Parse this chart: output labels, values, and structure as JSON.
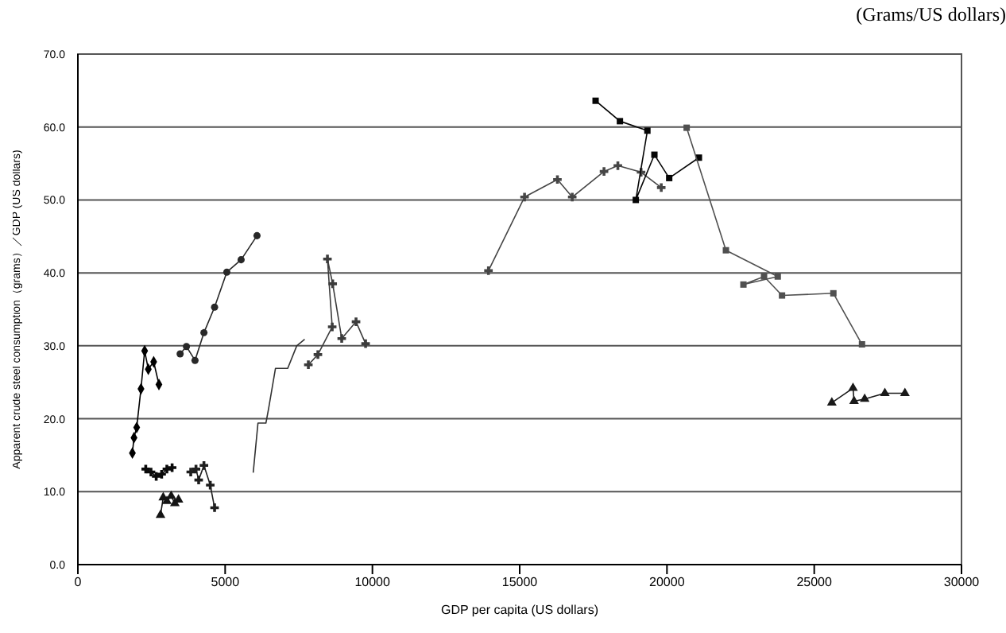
{
  "chart_data": {
    "type": "line",
    "xlabel": "GDP per capita (US dollars)",
    "ylabel": "Apparent crude steel consumption（grams）／GDP (US dollars)",
    "annotations": [
      "(Grams/US dollars)"
    ],
    "xlim": [
      0,
      30000
    ],
    "xticks": [
      0,
      5000,
      10000,
      15000,
      20000,
      25000,
      30000
    ],
    "ylim": [
      0,
      70
    ],
    "yticks": [
      {
        "value": 0,
        "label": "0.0"
      },
      {
        "value": 10,
        "label": "10.0"
      },
      {
        "value": 20,
        "label": "20.0"
      },
      {
        "value": 30,
        "label": "30.0"
      },
      {
        "value": 40,
        "label": "40.0"
      },
      {
        "value": 50,
        "label": "50.0"
      },
      {
        "value": 60,
        "label": "60.0"
      },
      {
        "value": 70,
        "label": "70.0"
      }
    ],
    "grid": "y",
    "series": [
      {
        "color": "#000000",
        "marker": "diamond",
        "x": [
          1851,
          1905,
          1997,
          2142,
          2267,
          2391,
          2574,
          2752
        ],
        "values": [
          15.3,
          17.4,
          18.8,
          24.1,
          29.3,
          26.8,
          27.8,
          24.7
        ]
      },
      {
        "color": "#0a0a0a",
        "marker": "cross",
        "x": [
          2304,
          2482,
          2660,
          2844,
          3022,
          3200
        ],
        "values": [
          13.1,
          12.7,
          12.1,
          12.4,
          13.1,
          13.3
        ]
      },
      {
        "color": "#141414",
        "marker": "triangle",
        "x": [
          2806,
          2898,
          3022,
          3168,
          3292,
          3416
        ],
        "values": [
          6.8,
          9.2,
          8.7,
          9.4,
          8.4,
          8.9
        ]
      },
      {
        "color": "#1e1e1e",
        "marker": "cross",
        "x": [
          3832,
          4010,
          4101,
          4280,
          4495,
          4641
        ],
        "values": [
          12.7,
          13.1,
          11.6,
          13.6,
          10.9,
          7.8
        ]
      },
      {
        "color": "#282828",
        "marker": "circle",
        "x": [
          3472,
          3686,
          3977,
          4280,
          4641,
          5057,
          5542,
          6082
        ],
        "values": [
          28.9,
          29.9,
          28.0,
          31.8,
          35.3,
          40.1,
          41.8,
          45.1
        ]
      },
      {
        "color": "#323232",
        "marker": "none",
        "x": [
          5953,
          6114,
          6384,
          6476,
          6708,
          7124,
          7431,
          7701
        ],
        "values": [
          12.6,
          19.4,
          19.4,
          21.4,
          26.9,
          26.9,
          30.0,
          30.9
        ]
      },
      {
        "color": "#3c3c3c",
        "marker": "cross",
        "x": [
          7825,
          8149,
          8635,
          8473,
          8651,
          8958,
          9444,
          9768
        ],
        "values": [
          27.4,
          28.8,
          32.6,
          41.9,
          38.5,
          31.0,
          33.3,
          30.3
        ]
      },
      {
        "color": "#464646",
        "marker": "cross",
        "x": [
          13940,
          15165,
          16281,
          16784,
          17863,
          18333,
          19121,
          19806
        ],
        "values": [
          40.3,
          50.4,
          52.8,
          50.4,
          53.9,
          54.7,
          53.8,
          51.7
        ]
      },
      {
        "color": "#050505",
        "marker": "square",
        "x": [
          17577,
          18403,
          19336,
          18942,
          19574,
          20076,
          21085
        ],
        "values": [
          63.6,
          60.8,
          59.5,
          50.0,
          56.2,
          53.0,
          55.8
        ]
      },
      {
        "color": "#505050",
        "marker": "square",
        "x": [
          20669,
          22002,
          23762,
          22596,
          23297,
          23907,
          25650,
          26622
        ],
        "values": [
          59.9,
          43.1,
          39.5,
          38.4,
          39.5,
          36.9,
          37.2,
          30.2
        ]
      },
      {
        "color": "#191919",
        "marker": "triangle",
        "x": [
          25598,
          26317,
          26352,
          26713,
          27398,
          28079
        ],
        "values": [
          22.2,
          24.2,
          22.4,
          22.7,
          23.5,
          23.5
        ]
      }
    ]
  }
}
